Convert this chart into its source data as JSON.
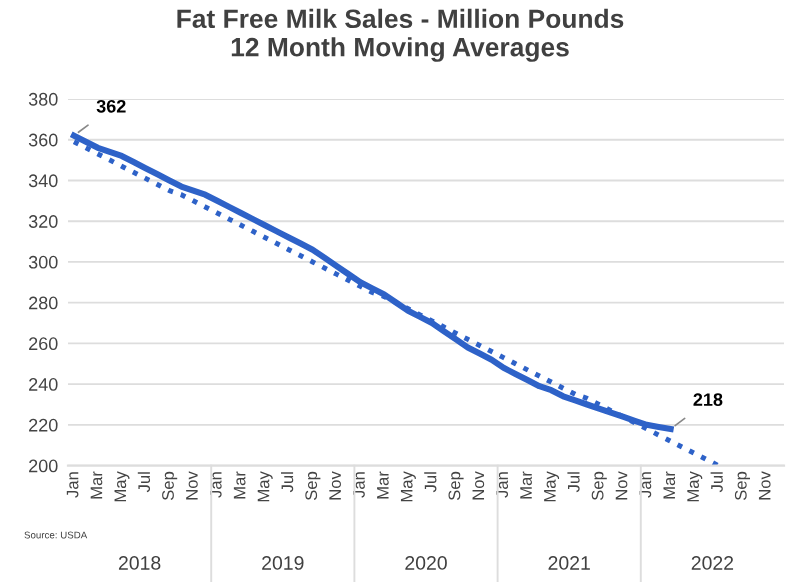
{
  "chart_data": {
    "type": "line",
    "title": "Fat Free Milk Sales - Million Pounds\n12 Month Moving Averages",
    "categories": [
      "Jan",
      null,
      "Mar",
      null,
      "May",
      null,
      "Jul",
      null,
      "Sep",
      null,
      "Nov",
      null,
      "Jan",
      null,
      "Mar",
      null,
      "May",
      null,
      "Jul",
      null,
      "Sep",
      null,
      "Nov",
      null,
      "Jan",
      null,
      "Mar",
      null,
      "May",
      null,
      "Jul",
      null,
      "Sep",
      null,
      "Nov",
      null,
      "Jan",
      null,
      "Mar",
      null,
      "May",
      null,
      "Jul",
      null,
      "Sep",
      null,
      "Nov",
      null,
      "Jan",
      null,
      "Mar",
      null,
      "May",
      null,
      "Jul",
      null,
      "Sep",
      null,
      "Nov",
      null
    ],
    "series": [
      {
        "color": "#2e62c8",
        "line_style": "solid",
        "values": [
          362,
          359,
          356,
          354,
          352,
          349,
          346,
          343,
          340,
          337,
          335,
          333,
          330,
          327,
          324,
          321,
          318,
          315,
          312,
          309,
          306,
          302,
          298,
          294,
          290,
          287,
          284,
          280,
          276,
          273,
          270,
          266,
          262,
          258,
          255,
          252,
          248,
          245,
          242,
          239,
          237,
          234,
          232,
          230,
          228,
          226,
          224,
          222,
          220,
          219,
          218,
          null,
          null,
          null,
          null,
          null,
          null,
          null,
          null,
          null
        ],
        "value_labels": [
          "362",
          null,
          null,
          null,
          null,
          null,
          null,
          null,
          null,
          null,
          null,
          null,
          null,
          null,
          null,
          null,
          null,
          null,
          null,
          null,
          null,
          null,
          null,
          null,
          null,
          null,
          null,
          null,
          null,
          null,
          null,
          null,
          null,
          null,
          null,
          null,
          null,
          null,
          null,
          null,
          null,
          null,
          null,
          null,
          null,
          null,
          null,
          null,
          null,
          null,
          "218",
          null,
          null,
          null,
          null,
          null,
          null,
          null,
          null,
          null
        ]
      },
      {
        "type": "line",
        "color": "#2e62c8",
        "line_style": "dotted",
        "values": [
          359,
          356,
          353,
          350,
          347,
          344,
          341,
          338,
          335,
          333,
          330,
          327,
          324,
          321,
          318,
          315,
          312,
          309,
          306,
          303,
          300,
          297,
          294,
          291,
          288,
          285,
          283,
          280,
          277,
          274,
          271,
          268,
          265,
          262,
          259,
          256,
          253,
          250,
          247,
          244,
          241,
          238,
          235,
          233,
          230,
          227,
          224,
          221,
          218,
          215,
          212,
          209,
          206,
          203,
          200,
          null,
          null,
          null,
          null,
          null
        ]
      }
    ],
    "ylim": [
      200,
      380
    ],
    "yticks": [
      200,
      220,
      240,
      260,
      280,
      300,
      320,
      340,
      360,
      380
    ],
    "grid": "y",
    "legend": false,
    "marker": "none",
    "annotations": [
      "2018",
      "2019",
      "2020",
      "2021",
      "2022",
      "Source: USDA"
    ]
  }
}
